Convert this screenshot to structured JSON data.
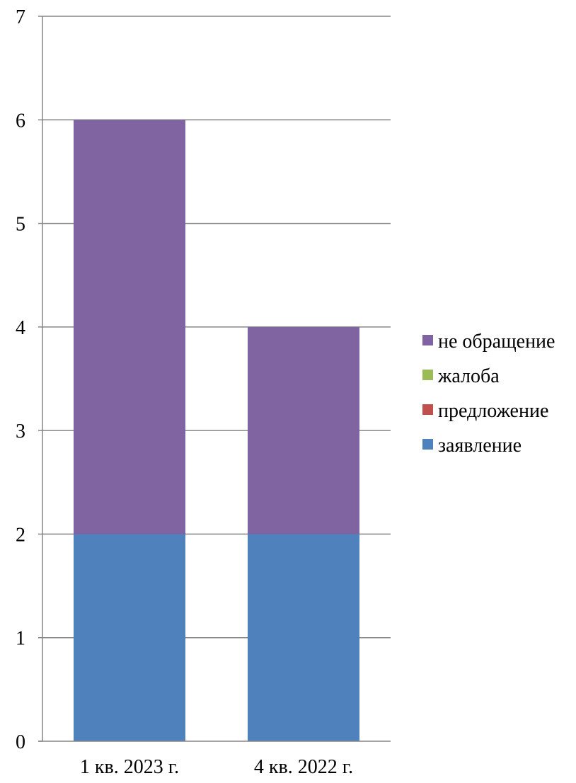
{
  "chart_data": {
    "type": "bar",
    "stacked": true,
    "categories": [
      "1 кв. 2023 г.",
      "4 кв. 2022 г."
    ],
    "series": [
      {
        "name": "заявление",
        "color": "#4F81BD",
        "values": [
          2,
          2
        ]
      },
      {
        "name": "предложение",
        "color": "#C0504D",
        "values": [
          0,
          0
        ]
      },
      {
        "name": "жалоба",
        "color": "#9BBB59",
        "values": [
          0,
          0
        ]
      },
      {
        "name": "не обращение",
        "color": "#8064A2",
        "values": [
          4,
          2
        ]
      }
    ],
    "yticks": [
      "0",
      "1",
      "2",
      "3",
      "4",
      "5",
      "6",
      "7"
    ],
    "ylim": [
      0,
      7
    ],
    "grid": true,
    "legend_position": "right",
    "legend_order": [
      "не обращение",
      "жалоба",
      "предложение",
      "заявление"
    ],
    "title": "",
    "xlabel": "",
    "ylabel": ""
  }
}
